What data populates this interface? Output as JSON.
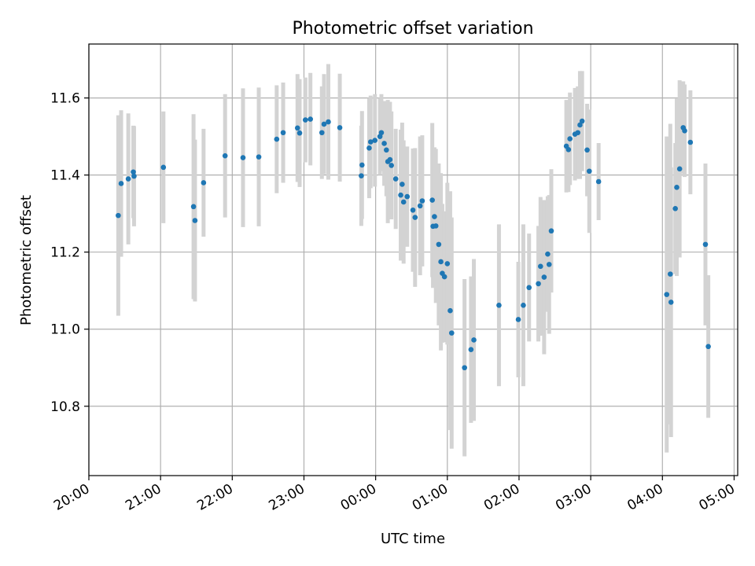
{
  "chart_data": {
    "type": "scatter",
    "title": "Photometric offset variation",
    "xlabel": "UTC time",
    "ylabel": "Photometric offset",
    "grid": true,
    "x_unit": "hours since 20:00 UTC",
    "xlim": [
      0,
      9.05
    ],
    "ylim": [
      10.62,
      11.74
    ],
    "xticks": [
      {
        "value": 0,
        "label": "20:00"
      },
      {
        "value": 1,
        "label": "21:00"
      },
      {
        "value": 2,
        "label": "22:00"
      },
      {
        "value": 3,
        "label": "23:00"
      },
      {
        "value": 4,
        "label": "00:00"
      },
      {
        "value": 5,
        "label": "01:00"
      },
      {
        "value": 6,
        "label": "02:00"
      },
      {
        "value": 7,
        "label": "03:00"
      },
      {
        "value": 8,
        "label": "04:00"
      },
      {
        "value": 9,
        "label": "05:00"
      }
    ],
    "yticks": [
      {
        "value": 10.8,
        "label": "10.8"
      },
      {
        "value": 11.0,
        "label": "11.0"
      },
      {
        "value": 11.2,
        "label": "11.2"
      },
      {
        "value": 11.4,
        "label": "11.4"
      },
      {
        "value": 11.6,
        "label": "11.6"
      }
    ],
    "colors": {
      "point": "#1f77b4",
      "errorbar": "#d3d3d3",
      "grid": "#b0b0b0",
      "axis": "#000000"
    },
    "series": [
      {
        "name": "photometric offset",
        "points": [
          [
            0.41,
            11.295,
            0.26
          ],
          [
            0.45,
            11.378,
            0.19
          ],
          [
            0.55,
            11.39,
            0.17
          ],
          [
            0.62,
            11.408,
            0.12
          ],
          [
            0.63,
            11.397,
            0.13
          ],
          [
            1.04,
            11.42,
            0.145
          ],
          [
            1.46,
            11.318,
            0.24
          ],
          [
            1.48,
            11.282,
            0.21
          ],
          [
            1.6,
            11.38,
            0.14
          ],
          [
            1.9,
            11.45,
            0.16
          ],
          [
            2.15,
            11.445,
            0.18
          ],
          [
            2.37,
            11.447,
            0.18
          ],
          [
            2.62,
            11.493,
            0.14
          ],
          [
            2.71,
            11.51,
            0.13
          ],
          [
            2.91,
            11.522,
            0.14
          ],
          [
            2.94,
            11.509,
            0.14
          ],
          [
            3.02,
            11.543,
            0.11
          ],
          [
            3.09,
            11.545,
            0.12
          ],
          [
            3.25,
            11.51,
            0.12
          ],
          [
            3.28,
            11.532,
            0.13
          ],
          [
            3.34,
            11.538,
            0.15
          ],
          [
            3.5,
            11.523,
            0.14
          ],
          [
            3.8,
            11.398,
            0.13
          ],
          [
            3.81,
            11.426,
            0.14
          ],
          [
            3.91,
            11.47,
            0.13
          ],
          [
            3.93,
            11.486,
            0.12
          ],
          [
            3.99,
            11.49,
            0.12
          ],
          [
            4.06,
            11.5,
            0.1
          ],
          [
            4.08,
            11.51,
            0.1
          ],
          [
            4.12,
            11.482,
            0.11
          ],
          [
            4.15,
            11.465,
            0.12
          ],
          [
            4.17,
            11.435,
            0.16
          ],
          [
            4.2,
            11.44,
            0.15
          ],
          [
            4.22,
            11.425,
            0.14
          ],
          [
            4.28,
            11.39,
            0.13
          ],
          [
            4.35,
            11.348,
            0.17
          ],
          [
            4.37,
            11.376,
            0.16
          ],
          [
            4.39,
            11.33,
            0.16
          ],
          [
            4.44,
            11.344,
            0.13
          ],
          [
            4.52,
            11.309,
            0.16
          ],
          [
            4.55,
            11.29,
            0.18
          ],
          [
            4.62,
            11.32,
            0.18
          ],
          [
            4.65,
            11.333,
            0.17
          ],
          [
            4.79,
            11.335,
            0.2
          ],
          [
            4.8,
            11.267,
            0.16
          ],
          [
            4.82,
            11.292,
            0.18
          ],
          [
            4.84,
            11.268,
            0.2
          ],
          [
            4.88,
            11.22,
            0.21
          ],
          [
            4.91,
            11.175,
            0.23
          ],
          [
            4.93,
            11.145,
            0.18
          ],
          [
            4.96,
            11.136,
            0.17
          ],
          [
            5.0,
            11.17,
            0.21
          ],
          [
            5.04,
            11.048,
            0.31
          ],
          [
            5.06,
            10.99,
            0.3
          ],
          [
            5.24,
            10.9,
            0.23
          ],
          [
            5.33,
            10.947,
            0.19
          ],
          [
            5.37,
            10.972,
            0.21
          ],
          [
            5.72,
            11.062,
            0.21
          ],
          [
            5.99,
            11.025,
            0.15
          ],
          [
            6.06,
            11.062,
            0.21
          ],
          [
            6.14,
            11.108,
            0.14
          ],
          [
            6.27,
            11.118,
            0.15
          ],
          [
            6.3,
            11.163,
            0.18
          ],
          [
            6.35,
            11.135,
            0.2
          ],
          [
            6.4,
            11.195,
            0.15
          ],
          [
            6.42,
            11.168,
            0.18
          ],
          [
            6.45,
            11.255,
            0.16
          ],
          [
            6.66,
            11.475,
            0.12
          ],
          [
            6.69,
            11.466,
            0.11
          ],
          [
            6.71,
            11.494,
            0.12
          ],
          [
            6.78,
            11.506,
            0.12
          ],
          [
            6.82,
            11.51,
            0.12
          ],
          [
            6.85,
            11.53,
            0.14
          ],
          [
            6.88,
            11.54,
            0.13
          ],
          [
            6.95,
            11.465,
            0.12
          ],
          [
            6.98,
            11.41,
            0.16
          ],
          [
            7.11,
            11.383,
            0.1
          ],
          [
            8.06,
            11.09,
            0.41
          ],
          [
            8.12,
            11.07,
            0.35
          ],
          [
            8.11,
            11.143,
            0.39
          ],
          [
            8.18,
            11.313,
            0.17
          ],
          [
            8.2,
            11.368,
            0.23
          ],
          [
            8.24,
            11.416,
            0.23
          ],
          [
            8.29,
            11.523,
            0.12
          ],
          [
            8.31,
            11.515,
            0.12
          ],
          [
            8.39,
            11.485,
            0.135
          ],
          [
            8.6,
            11.22,
            0.21
          ],
          [
            8.64,
            10.955,
            0.185
          ]
        ]
      }
    ]
  }
}
